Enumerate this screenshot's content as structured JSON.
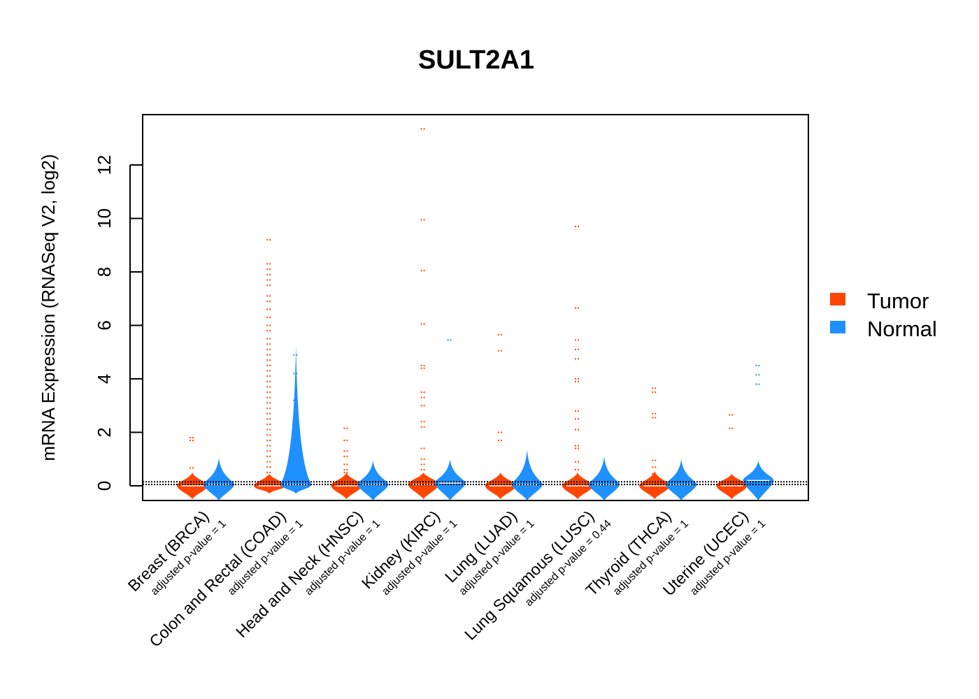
{
  "chart_data": {
    "type": "beanplot",
    "title": "SULT2A1",
    "ylabel": "mRNA Expression (RNASeq V2, log2)",
    "xlabel": "",
    "ylim": [
      -0.55,
      13.8
    ],
    "yticks": [
      0,
      2,
      4,
      6,
      8,
      10,
      12
    ],
    "reference_lines": [
      0.05,
      0.15
    ],
    "categories": [
      {
        "name": "Breast (BRCA)",
        "pvalue_label": "adjusted p-value = 1"
      },
      {
        "name": "Colon and Rectal (COAD)",
        "pvalue_label": "adjusted p-value = 1"
      },
      {
        "name": "Head and Neck (HNSC)",
        "pvalue_label": "adjusted p-value = 1"
      },
      {
        "name": "Kidney (KIRC)",
        "pvalue_label": "adjusted p-value = 1"
      },
      {
        "name": "Lung (LUAD)",
        "pvalue_label": "adjusted p-value = 1"
      },
      {
        "name": "Lung Squamous (LUSC)",
        "pvalue_label": "adjusted p-value = 0.44"
      },
      {
        "name": "Thyroid (THCA)",
        "pvalue_label": "adjusted p-value = 1"
      },
      {
        "name": "Uterine (UCEC)",
        "pvalue_label": "adjusted p-value = 1"
      }
    ],
    "series": [
      {
        "name": "Tumor",
        "color": "#FF4500",
        "groups": [
          {
            "median": 0.0,
            "max": 0.5,
            "min": -0.5,
            "points": [
              0.67,
              1.7,
              1.8
            ]
          },
          {
            "median": 0.0,
            "max": 0.45,
            "min": -0.3,
            "points": [
              0.2,
              0.35,
              0.5,
              0.7,
              0.9,
              1.1,
              1.3,
              1.5,
              1.7,
              1.9,
              2.1,
              2.3,
              2.5,
              2.7,
              2.9,
              3.1,
              3.3,
              3.5,
              3.7,
              3.9,
              4.1,
              4.3,
              4.5,
              4.7,
              4.9,
              5.1,
              5.3,
              5.5,
              5.8,
              6.0,
              6.3,
              6.6,
              6.9,
              7.1,
              7.5,
              7.7,
              7.9,
              8.1,
              8.3,
              9.2
            ]
          },
          {
            "median": 0.0,
            "max": 0.5,
            "min": -0.5,
            "points": [
              0.3,
              0.5,
              0.6,
              0.8,
              1.1,
              1.3,
              1.7,
              2.15
            ]
          },
          {
            "median": 0.05,
            "max": 0.5,
            "min": -0.5,
            "points": [
              0.2,
              0.4,
              0.6,
              0.8,
              1.0,
              1.4,
              2.2,
              2.4,
              3.0,
              3.3,
              3.5,
              4.4,
              4.5,
              6.05,
              8.05,
              9.95,
              13.35
            ]
          },
          {
            "median": 0.0,
            "max": 0.5,
            "min": -0.5,
            "points": [
              1.7,
              2.0,
              5.05,
              5.65
            ]
          },
          {
            "median": 0.0,
            "max": 0.5,
            "min": -0.5,
            "points": [
              0.2,
              0.35,
              0.6,
              0.9,
              1.4,
              1.5,
              2.1,
              2.5,
              2.8,
              3.9,
              4.0,
              4.75,
              5.1,
              5.45,
              6.65,
              9.7
            ]
          },
          {
            "median": 0.0,
            "max": 0.55,
            "min": -0.5,
            "points": [
              0.45,
              0.7,
              0.95,
              2.55,
              2.7,
              3.5,
              3.65
            ]
          },
          {
            "median": 0.0,
            "max": 0.45,
            "min": -0.5,
            "points": [
              2.15,
              2.65
            ]
          }
        ]
      },
      {
        "name": "Normal",
        "color": "#1E90FF",
        "groups": [
          {
            "median": 0.05,
            "max": 1.05,
            "min": -0.55,
            "points": []
          },
          {
            "median": 0.05,
            "max": 5.3,
            "min": -0.3,
            "points": [
              0.8,
              1.1,
              1.5,
              2.3,
              3.2,
              4.2,
              4.9
            ]
          },
          {
            "median": 0.05,
            "max": 0.95,
            "min": -0.55,
            "points": []
          },
          {
            "median": 0.1,
            "max": 1.0,
            "min": -0.55,
            "points": [
              5.45
            ]
          },
          {
            "median": 0.05,
            "max": 1.35,
            "min": -0.55,
            "points": []
          },
          {
            "median": 0.05,
            "max": 1.1,
            "min": -0.55,
            "points": []
          },
          {
            "median": 0.05,
            "max": 1.0,
            "min": -0.55,
            "points": []
          },
          {
            "median": 0.2,
            "max": 0.95,
            "min": -0.55,
            "points": [
              3.8,
              4.15,
              4.5
            ]
          }
        ]
      }
    ],
    "legend": {
      "position": "right",
      "entries": [
        "Tumor",
        "Normal"
      ]
    }
  }
}
